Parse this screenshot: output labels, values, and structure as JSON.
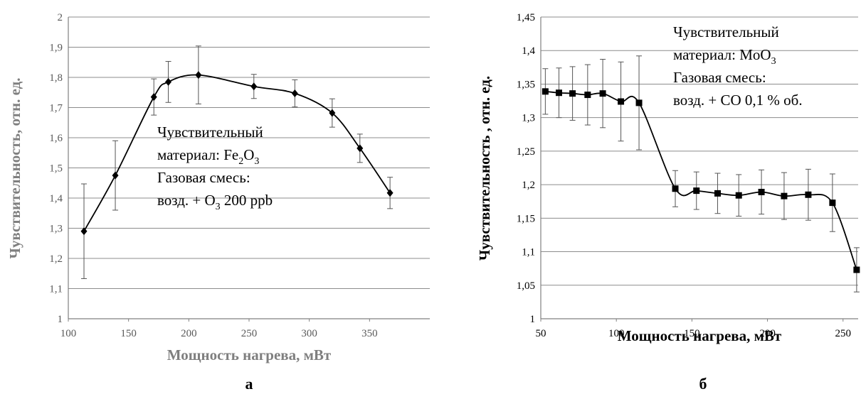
{
  "chart_data": [
    {
      "type": "line",
      "panel_label": "а",
      "xlabel": "Мощность нагрева, мВт",
      "ylabel": "Чувствительность, отн. ед.",
      "xlim": [
        100,
        400
      ],
      "ylim": [
        1,
        2
      ],
      "xticks": [
        100,
        150,
        200,
        250,
        300,
        350
      ],
      "xtick_labels": [
        "100",
        "150",
        "200",
        "250",
        "300",
        "350"
      ],
      "yticks": [
        1,
        1.1,
        1.2,
        1.3,
        1.4,
        1.5,
        1.6,
        1.7,
        1.8,
        1.9,
        2
      ],
      "ytick_labels": [
        "1",
        "1,1",
        "1,2",
        "1,3",
        "1,4",
        "1,5",
        "1,6",
        "1,7",
        "1,8",
        "1,9",
        "2"
      ],
      "grid": "horizontal",
      "axis_color": "#808080",
      "marker": "diamond",
      "series": [
        {
          "x": [
            113,
            139,
            171,
            183,
            208,
            254,
            288,
            319,
            342,
            367
          ],
          "y": [
            1.29,
            1.475,
            1.735,
            1.785,
            1.808,
            1.77,
            1.747,
            1.682,
            1.565,
            1.417
          ],
          "err": [
            0.157,
            0.115,
            0.06,
            0.068,
            0.096,
            0.04,
            0.045,
            0.047,
            0.047,
            0.052
          ]
        }
      ],
      "annotation": [
        "Чувствительный",
        "материал: Fe2O3",
        "Газовая смесь:",
        "возд. + O3 200 ppb"
      ]
    },
    {
      "type": "line",
      "panel_label": "б",
      "xlabel": "Мощность нагрева, мВт",
      "ylabel": "Чувствительность , отн. ед.",
      "xlim": [
        50,
        260
      ],
      "ylim": [
        1,
        1.45
      ],
      "xticks": [
        50,
        100,
        150,
        200,
        250
      ],
      "xtick_labels": [
        "50",
        "100",
        "150",
        "200",
        "250"
      ],
      "yticks": [
        1,
        1.05,
        1.1,
        1.15,
        1.2,
        1.25,
        1.3,
        1.35,
        1.4,
        1.45
      ],
      "ytick_labels": [
        "1",
        "1,05",
        "1,1",
        "1,15",
        "1,2",
        "1,25",
        "1,3",
        "1,35",
        "1,4",
        "1,45"
      ],
      "grid": "horizontal",
      "axis_color": "#808080",
      "marker": "square",
      "series": [
        {
          "x": [
            53,
            62,
            71,
            81,
            91,
            103,
            115,
            139,
            153,
            167,
            181,
            196,
            211,
            227,
            243,
            259
          ],
          "y": [
            1.339,
            1.337,
            1.336,
            1.334,
            1.336,
            1.324,
            1.322,
            1.194,
            1.191,
            1.187,
            1.184,
            1.189,
            1.183,
            1.185,
            1.173,
            1.073
          ],
          "err": [
            0.034,
            0.037,
            0.04,
            0.045,
            0.051,
            0.059,
            0.07,
            0.027,
            0.028,
            0.03,
            0.031,
            0.033,
            0.035,
            0.038,
            0.043,
            0.033
          ]
        }
      ],
      "annotation": [
        "Чувствительный",
        "материал: MoO3",
        "Газовая смесь:",
        "возд. + CO 0,1 % об."
      ]
    }
  ]
}
